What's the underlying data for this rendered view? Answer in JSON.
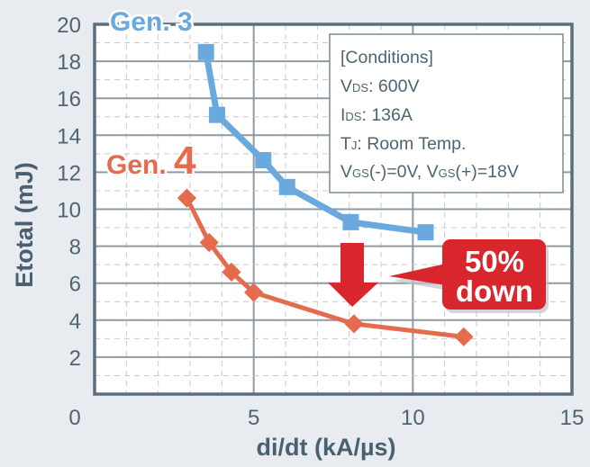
{
  "chart_data": {
    "type": "line",
    "title": "",
    "xlabel": "di/dt (kA/µs)",
    "ylabel": "Etotal (mJ)",
    "xlim": [
      0,
      15
    ],
    "ylim": [
      0,
      20
    ],
    "x_ticks": [
      "0",
      "5",
      "10",
      "15"
    ],
    "y_ticks": [
      "2",
      "4",
      "6",
      "8",
      "10",
      "12",
      "14",
      "16",
      "18",
      "20"
    ],
    "grid": true,
    "series": [
      {
        "name": "Gen. 3",
        "color": "#6aa9de",
        "marker": "square",
        "x": [
          3.5,
          3.85,
          5.3,
          6.05,
          8.05,
          10.4
        ],
        "y": [
          18.5,
          15.1,
          12.65,
          11.2,
          9.3,
          8.75
        ]
      },
      {
        "name": "Gen. 4",
        "color": "#e46b4e",
        "marker": "diamond",
        "x": [
          2.9,
          3.6,
          4.3,
          5.0,
          8.15,
          11.6
        ],
        "y": [
          10.6,
          8.2,
          6.6,
          5.5,
          3.8,
          3.1
        ]
      }
    ],
    "annotations": [
      {
        "type": "label",
        "text": "Gen. 3",
        "color": "#6aa9de"
      },
      {
        "type": "label",
        "text_prefix": "Gen. ",
        "text_number": "4",
        "color": "#e46b4e"
      },
      {
        "type": "arrow-down",
        "color": "#d9252c"
      },
      {
        "type": "callout",
        "lines": [
          "50%",
          "down"
        ],
        "color": "#d9252c"
      }
    ],
    "legend": {
      "title": "[Conditions]",
      "lines": [
        {
          "main": "V",
          "sub": "DS",
          "rest": ": 600V"
        },
        {
          "main": "I",
          "sub": "DS",
          "rest": ": 136A"
        },
        {
          "main": "T",
          "sub": "J",
          "rest": ": Room Temp."
        },
        {
          "main": "V",
          "sub": "GS",
          "rest": "(-)=0V, ",
          "main2": "V",
          "sub2": "GS",
          "rest2": "(+)=18V"
        }
      ]
    }
  }
}
